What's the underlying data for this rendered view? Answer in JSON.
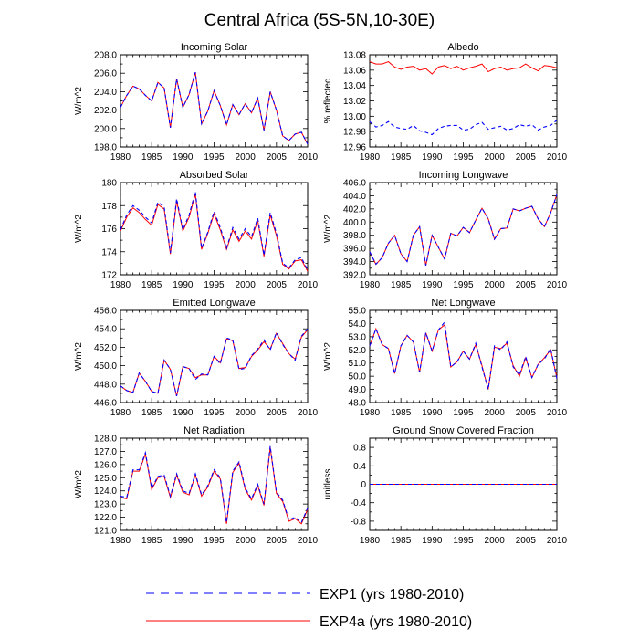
{
  "title": "Central Africa (5S-5N,10-30E)",
  "legend": [
    {
      "label": "EXP1 (yrs 1980-2010)",
      "color": "#0000ff",
      "dash": true
    },
    {
      "label": "EXP4a (yrs 1980-2010)",
      "color": "#ff0000",
      "dash": false
    }
  ],
  "chart_data": [
    {
      "type": "line",
      "title": "Incoming Solar",
      "ylabel": "W/m^2",
      "ylim": [
        198,
        208
      ],
      "yticks": [
        "198.0",
        "200.0",
        "202.0",
        "204.0",
        "206.0",
        "208.0"
      ],
      "xlim": [
        1980,
        2010
      ],
      "xticks": [
        "1980",
        "1985",
        "1990",
        "1995",
        "2000",
        "2005",
        "2010"
      ],
      "x": [
        1980,
        1981,
        1982,
        1983,
        1984,
        1985,
        1986,
        1987,
        1988,
        1989,
        1990,
        1991,
        1992,
        1993,
        1994,
        1995,
        1996,
        1997,
        1998,
        1999,
        2000,
        2001,
        2002,
        2003,
        2004,
        2005,
        2006,
        2007,
        2008,
        2009,
        2010
      ],
      "series": [
        {
          "name": "EXP1",
          "values": [
            202.3,
            203.6,
            204.6,
            204.3,
            203.6,
            203.0,
            205.0,
            204.4,
            200.1,
            205.4,
            202.3,
            203.7,
            206.1,
            200.5,
            201.9,
            204.1,
            202.5,
            200.4,
            202.6,
            201.5,
            202.7,
            201.7,
            203.3,
            199.8,
            204.0,
            202.0,
            199.2,
            198.7,
            199.4,
            199.6,
            198.3
          ]
        },
        {
          "name": "EXP4a",
          "values": [
            202.3,
            203.6,
            204.6,
            204.3,
            203.6,
            203.0,
            205.0,
            204.4,
            200.1,
            205.4,
            202.3,
            203.7,
            206.1,
            200.5,
            201.9,
            204.1,
            202.5,
            200.4,
            202.6,
            201.5,
            202.7,
            201.7,
            203.3,
            199.8,
            204.0,
            202.0,
            199.2,
            198.7,
            199.4,
            199.6,
            198.3
          ]
        }
      ]
    },
    {
      "type": "line",
      "title": "Albedo",
      "ylabel": "% reflected",
      "ylim": [
        12.96,
        13.08
      ],
      "yticks": [
        "12.96",
        "12.98",
        "13.00",
        "13.02",
        "13.04",
        "13.06",
        "13.08"
      ],
      "xlim": [
        1980,
        2010
      ],
      "xticks": [
        "1980",
        "1985",
        "1990",
        "1995",
        "2000",
        "2005",
        "2010"
      ],
      "x": [
        1980,
        1981,
        1982,
        1983,
        1984,
        1985,
        1986,
        1987,
        1988,
        1989,
        1990,
        1991,
        1992,
        1993,
        1994,
        1995,
        1996,
        1997,
        1998,
        1999,
        2000,
        2001,
        2002,
        2003,
        2004,
        2005,
        2006,
        2007,
        2008,
        2009,
        2010
      ],
      "series": [
        {
          "name": "EXP1",
          "values": [
            12.993,
            12.986,
            12.988,
            12.993,
            12.986,
            12.984,
            12.983,
            12.988,
            12.981,
            12.979,
            12.976,
            12.984,
            12.987,
            12.988,
            12.988,
            12.982,
            12.983,
            12.989,
            12.992,
            12.983,
            12.985,
            12.987,
            12.982,
            12.984,
            12.989,
            12.987,
            12.989,
            12.982,
            12.986,
            12.988,
            12.995
          ]
        },
        {
          "name": "EXP4a",
          "values": [
            13.071,
            13.068,
            13.068,
            13.071,
            13.064,
            13.061,
            13.064,
            13.065,
            13.06,
            13.062,
            13.055,
            13.064,
            13.066,
            13.062,
            13.065,
            13.06,
            13.063,
            13.065,
            13.068,
            13.058,
            13.062,
            13.064,
            13.06,
            13.062,
            13.063,
            13.068,
            13.063,
            13.059,
            13.066,
            13.065,
            13.063
          ]
        }
      ]
    },
    {
      "type": "line",
      "title": "Absorbed Solar",
      "ylabel": "W/m^2",
      "ylim": [
        172,
        180
      ],
      "yticks": [
        "172",
        "174",
        "176",
        "178",
        "180"
      ],
      "xlim": [
        1980,
        2010
      ],
      "xticks": [
        "1980",
        "1985",
        "1990",
        "1995",
        "2000",
        "2005",
        "2010"
      ],
      "x": [
        1980,
        1981,
        1982,
        1983,
        1984,
        1985,
        1986,
        1987,
        1988,
        1989,
        1990,
        1991,
        1992,
        1993,
        1994,
        1995,
        1996,
        1997,
        1998,
        1999,
        2000,
        2001,
        2002,
        2003,
        2004,
        2005,
        2006,
        2007,
        2008,
        2009,
        2010
      ],
      "series": [
        {
          "name": "EXP1",
          "values": [
            175.9,
            177.2,
            178.0,
            177.6,
            177.0,
            176.5,
            178.3,
            177.9,
            173.9,
            178.6,
            175.9,
            177.2,
            179.2,
            174.3,
            175.7,
            177.5,
            176.1,
            174.3,
            176.1,
            175.1,
            176.0,
            175.3,
            176.9,
            173.7,
            177.4,
            175.6,
            173.0,
            172.6,
            173.3,
            173.5,
            172.4
          ]
        },
        {
          "name": "EXP4a",
          "values": [
            175.8,
            177.0,
            177.8,
            177.4,
            176.8,
            176.3,
            178.1,
            177.7,
            173.8,
            178.4,
            175.8,
            177.0,
            179.0,
            174.2,
            175.6,
            177.3,
            175.9,
            174.2,
            175.9,
            174.9,
            175.8,
            175.1,
            176.7,
            173.6,
            177.2,
            175.4,
            172.9,
            172.5,
            173.2,
            173.3,
            172.3
          ]
        }
      ]
    },
    {
      "type": "line",
      "title": "Incoming Longwave",
      "ylabel": "W/m^2",
      "ylim": [
        392,
        406
      ],
      "yticks": [
        "392.0",
        "394.0",
        "396.0",
        "398.0",
        "400.0",
        "402.0",
        "404.0",
        "406.0"
      ],
      "xlim": [
        1980,
        2010
      ],
      "xticks": [
        "1980",
        "1985",
        "1990",
        "1995",
        "2000",
        "2005",
        "2010"
      ],
      "x": [
        1980,
        1981,
        1982,
        1983,
        1984,
        1985,
        1986,
        1987,
        1988,
        1989,
        1990,
        1991,
        1992,
        1993,
        1994,
        1995,
        1996,
        1997,
        1998,
        1999,
        2000,
        2001,
        2002,
        2003,
        2004,
        2005,
        2006,
        2007,
        2008,
        2009,
        2010
      ],
      "series": [
        {
          "name": "EXP1",
          "values": [
            395.5,
            393.6,
            394.6,
            396.8,
            398.0,
            395.2,
            394.0,
            398.0,
            399.3,
            393.4,
            398.0,
            396.2,
            394.4,
            398.3,
            397.9,
            399.2,
            398.4,
            400.3,
            402.1,
            400.5,
            397.4,
            399.0,
            399.1,
            402.0,
            401.7,
            402.1,
            402.4,
            400.5,
            399.3,
            401.4,
            404.2
          ]
        },
        {
          "name": "EXP4a",
          "values": [
            395.5,
            393.6,
            394.6,
            396.8,
            398.0,
            395.2,
            394.0,
            398.0,
            399.3,
            393.4,
            398.0,
            396.2,
            394.4,
            398.3,
            397.9,
            399.2,
            398.4,
            400.3,
            402.1,
            400.5,
            397.4,
            399.0,
            399.1,
            402.0,
            401.7,
            402.1,
            402.4,
            400.5,
            399.3,
            401.4,
            404.2
          ]
        }
      ]
    },
    {
      "type": "line",
      "title": "Emitted Longwave",
      "ylabel": "W/m^2",
      "ylim": [
        446,
        456
      ],
      "yticks": [
        "446.0",
        "448.0",
        "450.0",
        "452.0",
        "454.0",
        "456.0"
      ],
      "xlim": [
        1980,
        2010
      ],
      "xticks": [
        "1980",
        "1985",
        "1990",
        "1995",
        "2000",
        "2005",
        "2010"
      ],
      "x": [
        1980,
        1981,
        1982,
        1983,
        1984,
        1985,
        1986,
        1987,
        1988,
        1989,
        1990,
        1991,
        1992,
        1993,
        1994,
        1995,
        1996,
        1997,
        1998,
        1999,
        2000,
        2001,
        2002,
        2003,
        2004,
        2005,
        2006,
        2007,
        2008,
        2009,
        2010
      ],
      "series": [
        {
          "name": "EXP1",
          "values": [
            447.8,
            447.3,
            447.1,
            449.2,
            448.3,
            447.2,
            447.0,
            450.6,
            449.6,
            446.7,
            449.9,
            449.7,
            448.5,
            449.1,
            449.0,
            451.0,
            450.2,
            453.0,
            452.8,
            449.6,
            449.7,
            451.1,
            451.8,
            452.8,
            451.7,
            453.6,
            452.3,
            451.3,
            450.6,
            453.2,
            454.0
          ]
        },
        {
          "name": "EXP4a",
          "values": [
            447.8,
            447.3,
            447.1,
            449.2,
            448.3,
            447.2,
            447.0,
            450.6,
            449.6,
            446.7,
            449.9,
            449.7,
            448.7,
            449.0,
            449.0,
            451.0,
            450.3,
            452.9,
            452.7,
            449.7,
            449.8,
            451.0,
            451.7,
            452.6,
            451.8,
            453.5,
            452.4,
            451.3,
            450.7,
            453.1,
            453.9
          ]
        }
      ]
    },
    {
      "type": "line",
      "title": "Net Longwave",
      "ylabel": "W/m^2",
      "ylim": [
        48,
        55
      ],
      "yticks": [
        "48.0",
        "49.0",
        "50.0",
        "51.0",
        "52.0",
        "53.0",
        "54.0",
        "55.0"
      ],
      "xlim": [
        1980,
        2010
      ],
      "xticks": [
        "1980",
        "1985",
        "1990",
        "1995",
        "2000",
        "2005",
        "2010"
      ],
      "x": [
        1980,
        1981,
        1982,
        1983,
        1984,
        1985,
        1986,
        1987,
        1988,
        1989,
        1990,
        1991,
        1992,
        1993,
        1994,
        1995,
        1996,
        1997,
        1998,
        1999,
        2000,
        2001,
        2002,
        2003,
        2004,
        2005,
        2006,
        2007,
        2008,
        2009,
        2010
      ],
      "series": [
        {
          "name": "EXP1",
          "values": [
            52.3,
            53.6,
            52.4,
            52.1,
            50.2,
            52.3,
            53.1,
            52.6,
            50.3,
            53.3,
            51.9,
            53.5,
            54.1,
            50.7,
            51.1,
            51.9,
            51.3,
            52.5,
            50.7,
            49.0,
            52.3,
            52.0,
            52.6,
            50.7,
            50.1,
            51.5,
            49.9,
            50.9,
            51.3,
            52.1,
            49.8
          ]
        },
        {
          "name": "EXP4a",
          "values": [
            52.3,
            53.6,
            52.4,
            52.1,
            50.2,
            52.3,
            53.1,
            52.6,
            50.3,
            53.3,
            51.9,
            53.5,
            53.9,
            50.7,
            51.1,
            51.9,
            51.3,
            52.4,
            50.8,
            49.0,
            52.2,
            52.1,
            52.5,
            50.8,
            50.0,
            51.4,
            49.9,
            50.9,
            51.4,
            52.0,
            49.9
          ]
        }
      ]
    },
    {
      "type": "line",
      "title": "Net Radiation",
      "ylabel": "W/m^2",
      "ylim": [
        121,
        128
      ],
      "yticks": [
        "121.0",
        "122.0",
        "123.0",
        "124.0",
        "125.0",
        "126.0",
        "127.0",
        "128.0"
      ],
      "xlim": [
        1980,
        2010
      ],
      "xticks": [
        "1980",
        "1985",
        "1990",
        "1995",
        "2000",
        "2005",
        "2010"
      ],
      "x": [
        1980,
        1981,
        1982,
        1983,
        1984,
        1985,
        1986,
        1987,
        1988,
        1989,
        1990,
        1991,
        1992,
        1993,
        1994,
        1995,
        1996,
        1997,
        1998,
        1999,
        2000,
        2001,
        2002,
        2003,
        2004,
        2005,
        2006,
        2007,
        2008,
        2009,
        2010
      ],
      "series": [
        {
          "name": "EXP1",
          "values": [
            123.6,
            123.5,
            125.6,
            125.6,
            126.9,
            124.2,
            125.1,
            125.2,
            123.6,
            125.3,
            124.0,
            123.8,
            125.3,
            123.7,
            124.4,
            125.6,
            125.0,
            121.6,
            125.5,
            126.2,
            124.2,
            123.4,
            124.5,
            123.0,
            127.4,
            123.9,
            123.3,
            121.8,
            122.0,
            121.6,
            122.7
          ]
        },
        {
          "name": "EXP4a",
          "values": [
            123.5,
            123.4,
            125.5,
            125.5,
            126.8,
            124.1,
            125.0,
            125.1,
            123.5,
            125.2,
            123.9,
            123.7,
            125.2,
            123.6,
            124.3,
            125.5,
            124.9,
            121.5,
            125.4,
            126.1,
            124.1,
            123.3,
            124.4,
            122.9,
            127.3,
            123.8,
            123.2,
            121.7,
            121.9,
            121.5,
            122.6
          ]
        }
      ]
    },
    {
      "type": "line",
      "title": "Ground Snow Covered Fraction",
      "ylabel": "unitless",
      "ylim": [
        -1,
        1
      ],
      "yticks": [
        "-0.8",
        "-0.4",
        "0",
        "0.4",
        "0.8"
      ],
      "xlim": [
        1980,
        2010
      ],
      "xticks": [
        "1980",
        "1985",
        "1990",
        "1995",
        "2000",
        "2005",
        "2010"
      ],
      "x": [
        1980,
        1981,
        1982,
        1983,
        1984,
        1985,
        1986,
        1987,
        1988,
        1989,
        1990,
        1991,
        1992,
        1993,
        1994,
        1995,
        1996,
        1997,
        1998,
        1999,
        2000,
        2001,
        2002,
        2003,
        2004,
        2005,
        2006,
        2007,
        2008,
        2009,
        2010
      ],
      "series": [
        {
          "name": "EXP1",
          "values": [
            0,
            0,
            0,
            0,
            0,
            0,
            0,
            0,
            0,
            0,
            0,
            0,
            0,
            0,
            0,
            0,
            0,
            0,
            0,
            0,
            0,
            0,
            0,
            0,
            0,
            0,
            0,
            0,
            0,
            0,
            0
          ]
        },
        {
          "name": "EXP4a",
          "values": [
            0,
            0,
            0,
            0,
            0,
            0,
            0,
            0,
            0,
            0,
            0,
            0,
            0,
            0,
            0,
            0,
            0,
            0,
            0,
            0,
            0,
            0,
            0,
            0,
            0,
            0,
            0,
            0,
            0,
            0,
            0
          ]
        }
      ]
    }
  ]
}
